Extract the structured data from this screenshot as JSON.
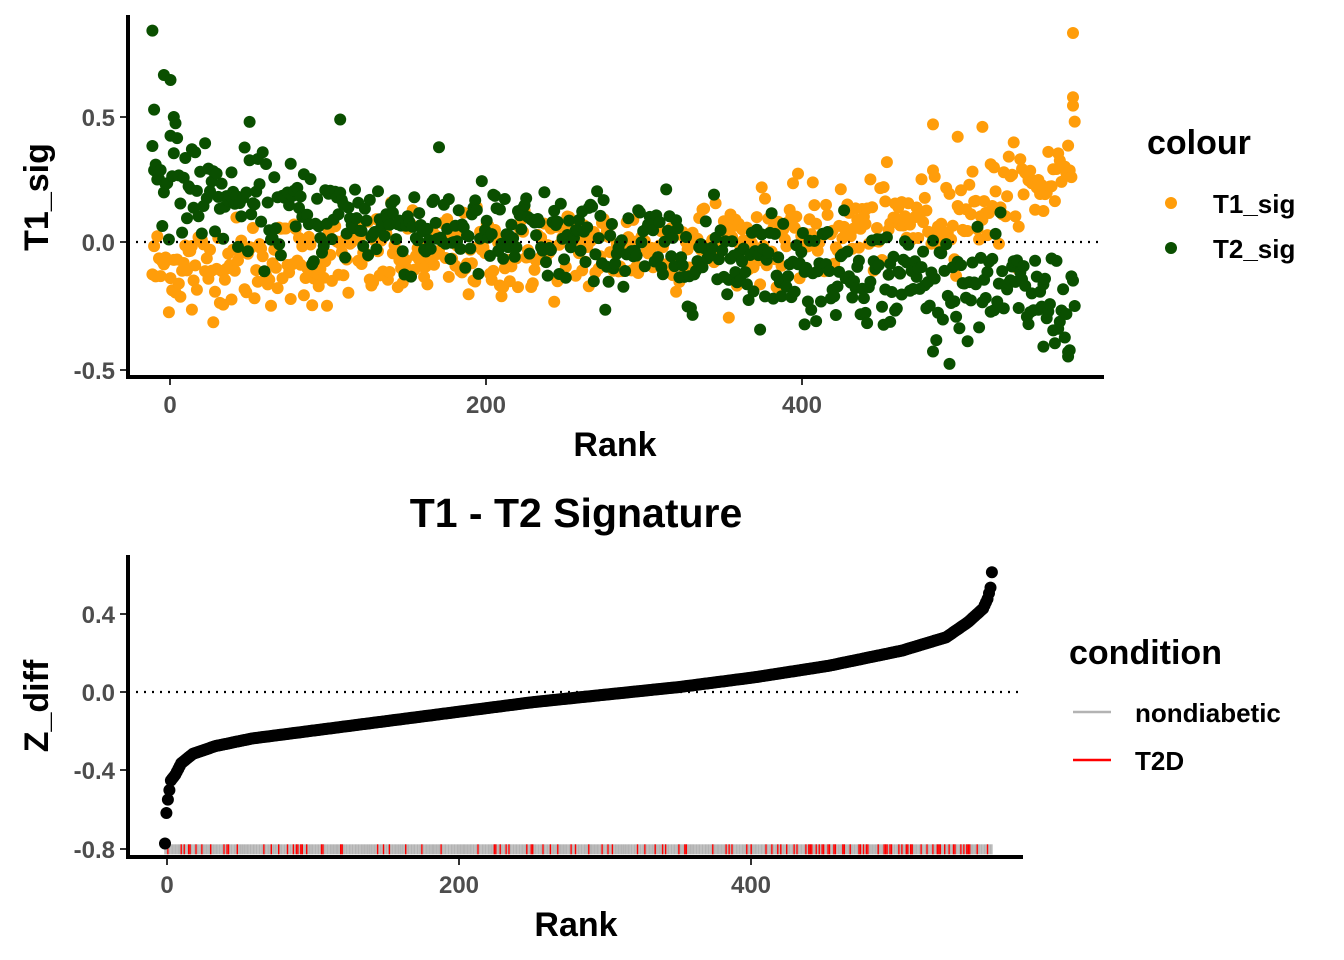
{
  "colors": {
    "T1_sig": "#FF9D0A",
    "T2_sig": "#0A4F00",
    "z_points": "#000000",
    "nondiabetic": "#B3B3B3",
    "T2D": "#FF0000"
  },
  "chart_data": [
    {
      "type": "scatter",
      "title": "",
      "xlabel": "Rank",
      "ylabel": "T1_sig",
      "xlim": [
        -12,
        577
      ],
      "ylim": [
        -0.545,
        0.905
      ],
      "x_ticks": [
        "0",
        "200",
        "400"
      ],
      "y_ticks": [
        "-0.5",
        "0.0",
        "0.5"
      ],
      "reference_line": {
        "y": 0,
        "style": "dotted"
      },
      "grid": false,
      "legend": {
        "title": "colour",
        "position": "right",
        "entries": [
          "T1_sig",
          "T2_sig"
        ]
      },
      "x_range": [
        1,
        561
      ],
      "series": [
        {
          "name": "T1_sig",
          "shape": "point",
          "trend": {
            "x": [
              0,
              50,
              100,
              150,
              200,
              250,
              300,
              350,
              400,
              450,
              500,
              550,
              561
            ],
            "y": [
              -0.11,
              -0.09,
              -0.08,
              -0.07,
              -0.06,
              -0.04,
              -0.02,
              0.0,
              0.03,
              0.07,
              0.13,
              0.25,
              0.45
            ]
          },
          "spread": 0.09,
          "highlights": [
            {
              "x": 560,
              "y": 0.84
            },
            {
              "x": 560,
              "y": 0.58
            },
            {
              "x": 475,
              "y": 0.47
            },
            {
              "x": 505,
              "y": 0.46
            },
            {
              "x": 490,
              "y": 0.42
            },
            {
              "x": 25,
              "y": -0.28
            }
          ]
        },
        {
          "name": "T2_sig",
          "shape": "point",
          "trend": {
            "x": [
              0,
              50,
              100,
              150,
              200,
              250,
              300,
              350,
              400,
              450,
              500,
              550,
              561
            ],
            "y": [
              0.3,
              0.15,
              0.1,
              0.07,
              0.03,
              0.0,
              -0.03,
              -0.06,
              -0.1,
              -0.14,
              -0.18,
              -0.25,
              -0.3
            ]
          },
          "spread": 0.1,
          "highlights": [
            {
              "x": 1,
              "y": 0.85
            },
            {
              "x": 8,
              "y": 0.67
            },
            {
              "x": 12,
              "y": 0.65
            },
            {
              "x": 2,
              "y": 0.53
            },
            {
              "x": 14,
              "y": 0.5
            },
            {
              "x": 115,
              "y": 0.49
            },
            {
              "x": 60,
              "y": 0.48
            },
            {
              "x": 557,
              "y": -0.47
            },
            {
              "x": 475,
              "y": -0.45
            },
            {
              "x": 542,
              "y": -0.43
            },
            {
              "x": 397,
              "y": -0.34
            },
            {
              "x": 449,
              "y": -0.33
            }
          ]
        }
      ]
    },
    {
      "type": "scatter",
      "title": "T1 - T2 Signature",
      "xlabel": "Rank",
      "ylabel": "Z_diff",
      "xlim": [
        -22,
        580
      ],
      "ylim": [
        -0.84,
        0.72
      ],
      "x_ticks": [
        "0",
        "200",
        "400"
      ],
      "y_ticks": [
        "-0.8",
        "-0.4",
        "0.0",
        "0.4"
      ],
      "reference_line": {
        "y": 0,
        "style": "dotted"
      },
      "grid": false,
      "legend": {
        "title": "condition",
        "position": "right",
        "entries": [
          "nondiabetic",
          "T2D"
        ]
      },
      "series": [
        {
          "name": "Z_diff",
          "shape": "point",
          "x_range": [
            1,
            561
          ],
          "curve": {
            "x": [
              1,
              2,
              3,
              5,
              8,
              12,
              20,
              35,
              60,
              100,
              150,
              200,
              250,
              300,
              350,
              400,
              450,
              500,
              530,
              545,
              555,
              558,
              560,
              561
            ],
            "y": [
              -0.78,
              -0.62,
              -0.55,
              -0.45,
              -0.42,
              -0.36,
              -0.31,
              -0.27,
              -0.23,
              -0.19,
              -0.14,
              -0.09,
              -0.04,
              0.0,
              0.04,
              0.09,
              0.15,
              0.23,
              0.3,
              0.38,
              0.45,
              0.5,
              0.56,
              0.64
            ]
          }
        }
      ],
      "rug": {
        "y": -0.81,
        "x_range": [
          1,
          561
        ],
        "T2D_density": {
          "x": [
            0,
            100,
            200,
            300,
            400,
            450,
            500,
            561
          ],
          "p": [
            0.12,
            0.14,
            0.15,
            0.2,
            0.25,
            0.4,
            0.5,
            0.55
          ]
        }
      }
    }
  ]
}
